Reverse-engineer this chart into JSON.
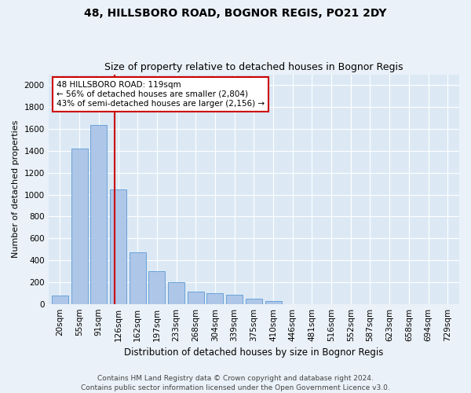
{
  "title": "48, HILLSBORO ROAD, BOGNOR REGIS, PO21 2DY",
  "subtitle": "Size of property relative to detached houses in Bognor Regis",
  "xlabel": "Distribution of detached houses by size in Bognor Regis",
  "ylabel": "Number of detached properties",
  "categories": [
    "20sqm",
    "55sqm",
    "91sqm",
    "126sqm",
    "162sqm",
    "197sqm",
    "233sqm",
    "268sqm",
    "304sqm",
    "339sqm",
    "375sqm",
    "410sqm",
    "446sqm",
    "481sqm",
    "516sqm",
    "552sqm",
    "587sqm",
    "623sqm",
    "658sqm",
    "694sqm",
    "729sqm"
  ],
  "values": [
    80,
    1420,
    1640,
    1050,
    470,
    300,
    200,
    115,
    95,
    85,
    50,
    30,
    0,
    0,
    0,
    0,
    0,
    0,
    0,
    0,
    0
  ],
  "bar_color": "#aec6e8",
  "bar_edge_color": "#5b9bd5",
  "vline_x": 2.82,
  "vline_color": "#cc0000",
  "annotation_text": "48 HILLSBORO ROAD: 119sqm\n← 56% of detached houses are smaller (2,804)\n43% of semi-detached houses are larger (2,156) →",
  "annotation_box_color": "#ffffff",
  "annotation_box_edge": "#cc0000",
  "ylim": [
    0,
    2100
  ],
  "yticks": [
    0,
    200,
    400,
    600,
    800,
    1000,
    1200,
    1400,
    1600,
    1800,
    2000
  ],
  "footer_line1": "Contains HM Land Registry data © Crown copyright and database right 2024.",
  "footer_line2": "Contains public sector information licensed under the Open Government Licence v3.0.",
  "fig_bg_color": "#eaf1f8",
  "plot_bg_color": "#dce9f5",
  "title_fontsize": 10,
  "subtitle_fontsize": 9,
  "xlabel_fontsize": 8.5,
  "ylabel_fontsize": 8,
  "tick_fontsize": 7.5,
  "footer_fontsize": 6.5,
  "annot_fontsize": 7.5
}
